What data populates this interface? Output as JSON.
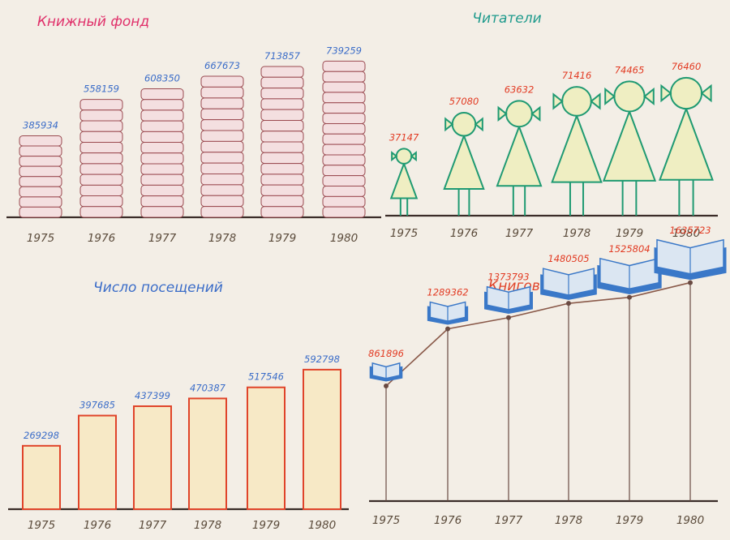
{
  "colors": {
    "paper": "#f3eee6",
    "title_pink": "#e0306a",
    "title_teal": "#1e9a8c",
    "title_blue": "#3a6cc8",
    "title_red": "#e0442a",
    "value_blue": "#3a6cc8",
    "value_red": "#e23a22",
    "book_fill": "#f4dfe0",
    "book_line": "#9a4a50",
    "girl_fill": "#efeec2",
    "girl_line": "#1f9a72",
    "bar_fill": "#f7e9c6",
    "bar_line": "#e0442a",
    "open_book_fill": "#dbe6f2",
    "open_book_line": "#3a78c8",
    "axis": "#3a2c28",
    "year_text": "#5a4a3a"
  },
  "chart_data": [
    {
      "id": "book_fund",
      "type": "bar",
      "pictorial": "stacked-books",
      "title": "Книжный фонд",
      "categories": [
        "1975",
        "1976",
        "1977",
        "1978",
        "1979",
        "1980"
      ],
      "values": [
        385934,
        558159,
        608350,
        667673,
        713857,
        739259
      ],
      "ylim": [
        0,
        760000
      ]
    },
    {
      "id": "readers",
      "type": "bar",
      "pictorial": "girl-figures",
      "title": "Читатели",
      "categories": [
        "1975",
        "1976",
        "1977",
        "1978",
        "1979",
        "1980"
      ],
      "values": [
        37147,
        57080,
        63632,
        71416,
        74465,
        76460
      ],
      "ylim": [
        0,
        80000
      ]
    },
    {
      "id": "visits",
      "type": "bar",
      "title": "Число посещений",
      "categories": [
        "1975",
        "1976",
        "1977",
        "1978",
        "1979",
        "1980"
      ],
      "values": [
        269298,
        397685,
        437399,
        470387,
        517546,
        592798
      ],
      "ylim": [
        0,
        620000
      ]
    },
    {
      "id": "loans",
      "type": "line",
      "pictorial": "open-books",
      "title": "Книговыдача",
      "categories": [
        "1975",
        "1976",
        "1977",
        "1978",
        "1979",
        "1980"
      ],
      "values": [
        861896,
        1289362,
        1373793,
        1480505,
        1525804,
        1635723
      ],
      "ylim": [
        0,
        1700000
      ]
    }
  ]
}
